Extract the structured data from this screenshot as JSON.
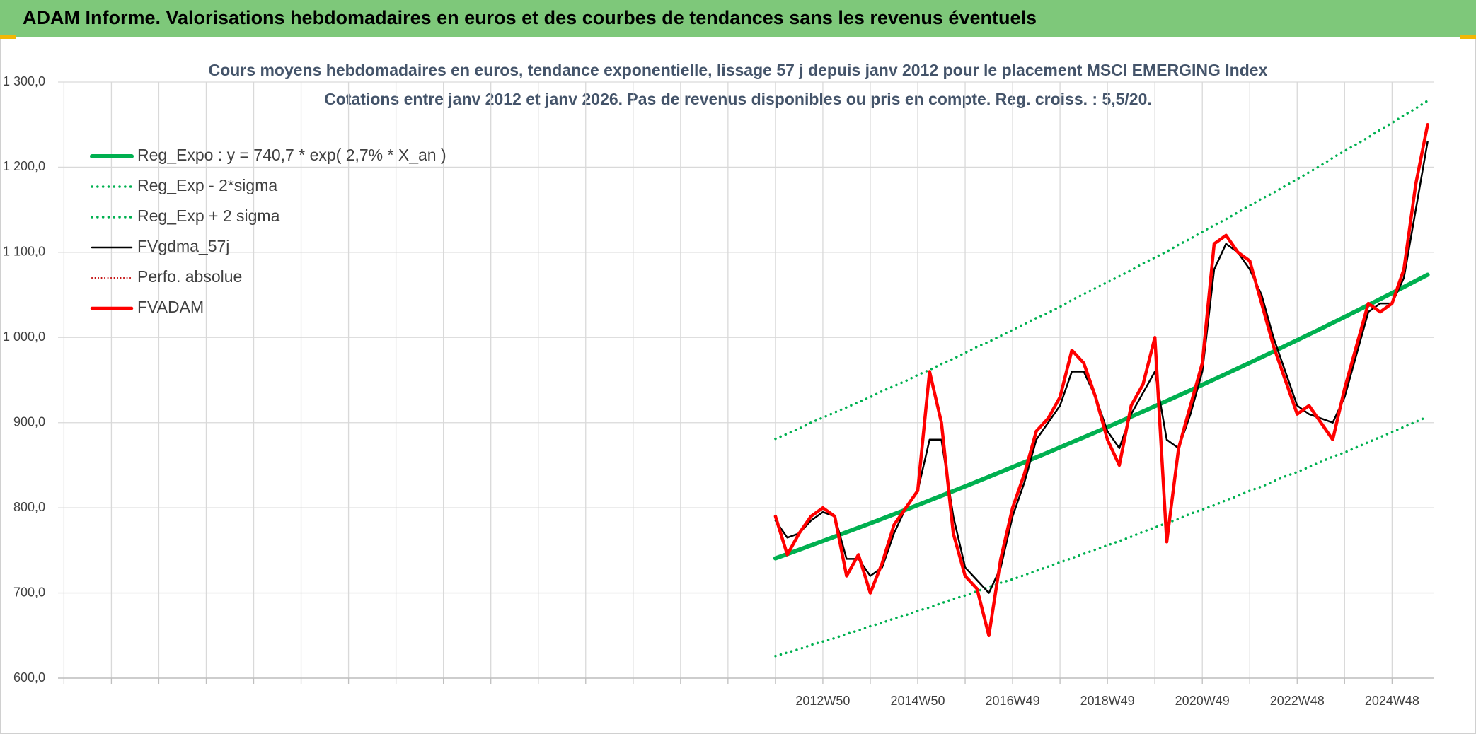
{
  "header": {
    "title": "ADAM Informe. Valorisations hebdomadaires en euros et des courbes de tendances sans les revenus éventuels"
  },
  "chart_data": {
    "type": "line",
    "title": "Cours moyens hebdomadaires en euros, tendance exponentielle, lissage 57 j depuis janv 2012 pour le placement MSCI EMERGING Index",
    "subtitle": "Cotations entre janv 2012 et janv 2026. Pas de revenus disponibles ou pris en compte. Reg. croiss. : 5,5/20.",
    "ylim": [
      600,
      1300
    ],
    "yticks": [
      {
        "value": 600,
        "label": "600,0"
      },
      {
        "value": 700,
        "label": "700,0"
      },
      {
        "value": 800,
        "label": "800,0"
      },
      {
        "value": 900,
        "label": "900,0"
      },
      {
        "value": 1000,
        "label": "1 000,0"
      },
      {
        "value": 1100,
        "label": "1 100,0"
      },
      {
        "value": 1200,
        "label": "1 200,0"
      },
      {
        "value": 1300,
        "label": "1 300,0"
      }
    ],
    "grid": true,
    "legend": "top-left",
    "categories": [
      null,
      null,
      null,
      null,
      null,
      null,
      null,
      null,
      null,
      null,
      null,
      null,
      null,
      null,
      null,
      null,
      null,
      null,
      null,
      null,
      null,
      null,
      null,
      null,
      null,
      null,
      null,
      null,
      null,
      null,
      null,
      null,
      null,
      null,
      null,
      null,
      null,
      null,
      null,
      null,
      null,
      null,
      null,
      null,
      null,
      null,
      null,
      null,
      null,
      null,
      null,
      null,
      null,
      null,
      null,
      null,
      null,
      null,
      null,
      null,
      null,
      null,
      null,
      null,
      "2012W50",
      null,
      null,
      null,
      null,
      null,
      null,
      null,
      "2014W50",
      null,
      null,
      null,
      null,
      null,
      null,
      null,
      "2016W49",
      null,
      null,
      null,
      null,
      null,
      null,
      null,
      "2018W49",
      null,
      null,
      null,
      null,
      null,
      null,
      null,
      "2020W49",
      null,
      null,
      null,
      null,
      null,
      null,
      null,
      "2022W48",
      null,
      null,
      null,
      null,
      null,
      null,
      null,
      "2024W48",
      null,
      null,
      null
    ],
    "series": [
      {
        "name": "Reg_Expo : y = 740,7 * exp( 2,7% *  X_an )",
        "color": "#00b050",
        "style": "solid",
        "width": 6,
        "values": [
          null,
          null,
          null,
          null,
          null,
          null,
          null,
          null,
          null,
          null,
          null,
          null,
          null,
          null,
          null,
          null,
          null,
          null,
          null,
          null,
          null,
          null,
          null,
          null,
          null,
          null,
          null,
          null,
          null,
          null,
          null,
          null,
          null,
          null,
          null,
          null,
          null,
          null,
          null,
          null,
          null,
          null,
          null,
          null,
          null,
          null,
          null,
          null,
          null,
          null,
          null,
          null,
          null,
          null,
          null,
          null,
          null,
          null,
          null,
          null,
          740.7,
          745.7,
          750.8,
          755.9,
          761.0,
          766.2,
          771.4,
          776.6,
          781.8,
          787.1,
          792.5,
          797.8,
          803.2,
          808.7,
          814.2,
          819.7,
          825.2,
          830.8,
          836.4,
          842.1,
          847.8,
          853.5,
          859.3,
          865.1,
          871.0,
          876.9,
          882.8,
          888.8,
          894.8,
          900.9,
          907.0,
          913.1,
          919.3,
          925.5,
          931.8,
          938.1,
          944.5,
          950.9,
          957.3,
          963.8,
          970.3,
          976.9,
          983.5,
          990.2,
          996.9,
          1003.6,
          1010.4,
          1017.3,
          1024.2,
          1031.1,
          1038.1,
          1045.1,
          1052.2,
          1059.3,
          1066.5,
          1073.7
        ]
      },
      {
        "name": "Reg_Exp - 2*sigma",
        "color": "#00b050",
        "style": "dotted",
        "width": 3.5,
        "values": [
          null,
          null,
          null,
          null,
          null,
          null,
          null,
          null,
          null,
          null,
          null,
          null,
          null,
          null,
          null,
          null,
          null,
          null,
          null,
          null,
          null,
          null,
          null,
          null,
          null,
          null,
          null,
          null,
          null,
          null,
          null,
          null,
          null,
          null,
          null,
          null,
          null,
          null,
          null,
          null,
          null,
          null,
          null,
          null,
          null,
          null,
          null,
          null,
          null,
          null,
          null,
          null,
          null,
          null,
          null,
          null,
          null,
          null,
          null,
          null,
          626,
          630,
          634,
          639,
          643,
          647,
          652,
          656,
          661,
          665,
          670,
          674,
          679,
          683,
          688,
          693,
          697,
          702,
          707,
          712,
          716,
          721,
          726,
          731,
          736,
          741,
          746,
          751,
          756,
          761,
          766,
          772,
          777,
          782,
          787,
          793,
          798,
          803,
          809,
          814,
          820,
          825,
          831,
          837,
          842,
          848,
          854,
          860,
          865,
          871,
          877,
          883,
          889,
          895,
          901,
          907
        ]
      },
      {
        "name": "Reg_Exp + 2 sigma",
        "color": "#00b050",
        "style": "dotted",
        "width": 3.5,
        "values": [
          null,
          null,
          null,
          null,
          null,
          null,
          null,
          null,
          null,
          null,
          null,
          null,
          null,
          null,
          null,
          null,
          null,
          null,
          null,
          null,
          null,
          null,
          null,
          null,
          null,
          null,
          null,
          null,
          null,
          null,
          null,
          null,
          null,
          null,
          null,
          null,
          null,
          null,
          null,
          null,
          null,
          null,
          null,
          null,
          null,
          null,
          null,
          null,
          null,
          null,
          null,
          null,
          null,
          null,
          null,
          null,
          null,
          null,
          null,
          null,
          881,
          887,
          893,
          900,
          906,
          912,
          918,
          924,
          930,
          937,
          943,
          949,
          956,
          962,
          969,
          975,
          982,
          989,
          995,
          1002,
          1009,
          1016,
          1023,
          1029,
          1036,
          1044,
          1051,
          1058,
          1065,
          1072,
          1079,
          1087,
          1094,
          1101,
          1109,
          1116,
          1124,
          1132,
          1139,
          1147,
          1155,
          1163,
          1170,
          1178,
          1186,
          1194,
          1202,
          1211,
          1219,
          1227,
          1235,
          1244,
          1252,
          1261,
          1269,
          1278
        ]
      },
      {
        "name": "FVgdma_57j",
        "color": "#000000",
        "style": "solid",
        "width": 2.5,
        "values": [
          null,
          null,
          null,
          null,
          null,
          null,
          null,
          null,
          null,
          null,
          null,
          null,
          null,
          null,
          null,
          null,
          null,
          null,
          null,
          null,
          null,
          null,
          null,
          null,
          null,
          null,
          null,
          null,
          null,
          null,
          null,
          null,
          null,
          null,
          null,
          null,
          null,
          null,
          null,
          null,
          null,
          null,
          null,
          null,
          null,
          null,
          null,
          null,
          null,
          null,
          null,
          null,
          null,
          null,
          null,
          null,
          null,
          null,
          null,
          null,
          785,
          765,
          770,
          785,
          795,
          790,
          740,
          740,
          720,
          730,
          770,
          800,
          820,
          880,
          880,
          790,
          730,
          715,
          700,
          730,
          790,
          830,
          880,
          900,
          920,
          960,
          960,
          930,
          890,
          870,
          910,
          935,
          960,
          880,
          870,
          910,
          960,
          1080,
          1110,
          1100,
          1080,
          1050,
          1000,
          960,
          920,
          910,
          905,
          900,
          930,
          980,
          1030,
          1040,
          1040,
          1070,
          1150,
          1230
        ]
      },
      {
        "name": "Perfo. absolue",
        "color": "#c00000",
        "style": "dotted",
        "width": 2,
        "values": [
          null,
          null,
          null,
          null,
          null,
          null,
          null,
          null,
          null,
          null,
          null,
          null,
          null,
          null,
          null,
          null,
          null,
          null,
          null,
          null,
          null,
          null,
          null,
          null,
          null,
          null,
          null,
          null,
          null,
          null,
          null,
          null,
          null,
          null,
          null,
          null,
          null,
          null,
          null,
          null,
          null,
          null,
          null,
          null,
          null,
          null,
          null,
          null,
          null,
          null,
          null,
          null,
          null,
          null,
          null,
          null,
          null,
          null,
          null,
          null,
          null,
          null,
          null,
          null,
          null,
          null,
          null,
          null,
          null,
          null,
          null,
          null,
          null,
          null,
          null,
          null,
          null,
          null,
          null,
          null,
          null,
          null,
          null,
          null,
          null,
          null,
          null,
          null,
          null,
          null,
          null,
          null,
          null,
          null,
          null,
          null,
          null,
          null,
          null,
          null,
          null,
          null,
          null,
          null,
          null,
          null,
          null,
          null,
          null,
          null,
          null,
          null,
          null,
          null,
          null,
          null
        ]
      },
      {
        "name": "FVADAM",
        "color": "#ff0000",
        "style": "solid",
        "width": 4.5,
        "values": [
          null,
          null,
          null,
          null,
          null,
          null,
          null,
          null,
          null,
          null,
          null,
          null,
          null,
          null,
          null,
          null,
          null,
          null,
          null,
          null,
          null,
          null,
          null,
          null,
          null,
          null,
          null,
          null,
          null,
          null,
          null,
          null,
          null,
          null,
          null,
          null,
          null,
          null,
          null,
          null,
          null,
          null,
          null,
          null,
          null,
          null,
          null,
          null,
          null,
          null,
          null,
          null,
          null,
          null,
          null,
          null,
          null,
          null,
          null,
          null,
          790,
          745,
          770,
          790,
          800,
          790,
          720,
          745,
          700,
          735,
          780,
          800,
          820,
          960,
          900,
          770,
          720,
          705,
          650,
          740,
          800,
          840,
          890,
          905,
          930,
          985,
          970,
          930,
          880,
          850,
          920,
          945,
          1000,
          760,
          870,
          920,
          970,
          1110,
          1120,
          1100,
          1090,
          1040,
          990,
          950,
          910,
          920,
          900,
          880,
          940,
          990,
          1040,
          1030,
          1040,
          1080,
          1180,
          1250
        ]
      }
    ]
  }
}
